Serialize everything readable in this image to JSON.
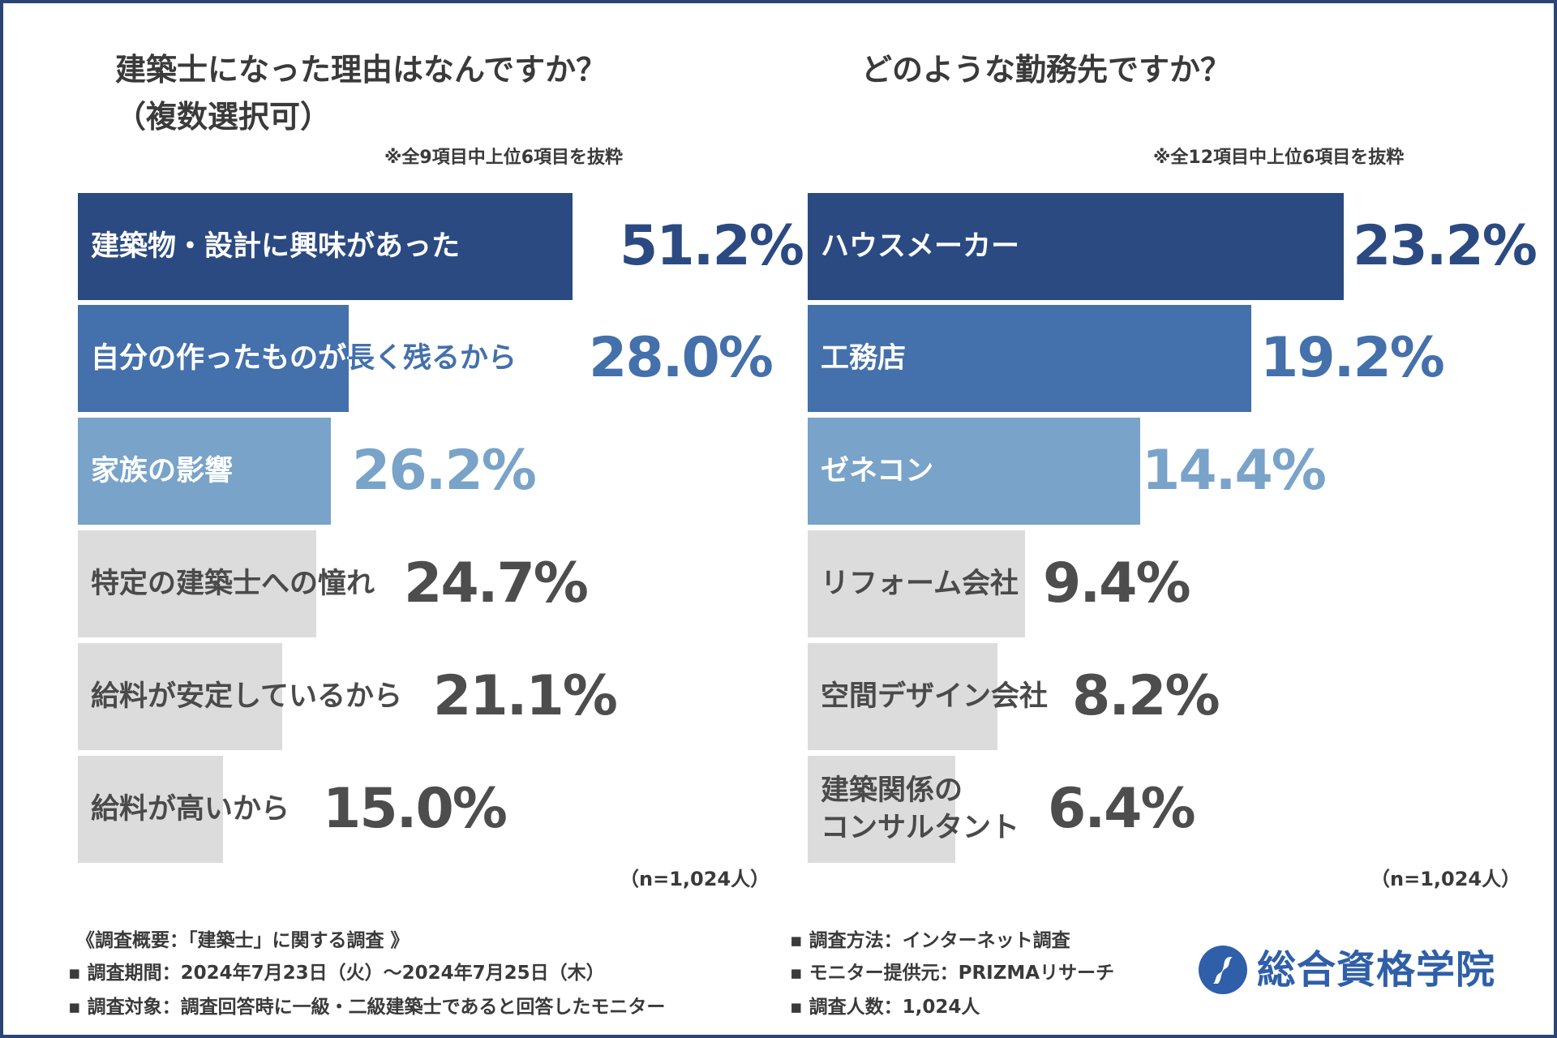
{
  "colors": {
    "border": "#2b4577",
    "rank1": "#2b4a82",
    "rank2": "#4470ab",
    "rank3": "#79a3c9",
    "rest": "#dcdcdc",
    "white_text": "#ffffff",
    "dark_text": "#4a4a4a",
    "value_rest": "#4d4d4d"
  },
  "chart_data": [
    {
      "type": "bar",
      "orientation": "horizontal",
      "title_line1": "建築士になった理由はなんですか？",
      "title_line2": "（複数選択可）",
      "note": "※全9項目中上位6項目を抜粋",
      "sample": "（n=1,024人）",
      "xlim": [
        0,
        60
      ],
      "categories": [
        "建築物・設計に興味があった",
        "自分の作ったものが長く残るから",
        "家族の影響",
        "特定の建築士への憧れ",
        "給料が安定しているから",
        "給料が高いから"
      ],
      "values": [
        51.2,
        28.0,
        26.2,
        24.7,
        21.1,
        15.0
      ],
      "value_labels": [
        "51.2%",
        "28.0%",
        "26.2%",
        "24.7%",
        "21.1%",
        "15.0%"
      ]
    },
    {
      "type": "bar",
      "orientation": "horizontal",
      "title_line1": "どのような勤務先ですか？",
      "note": "※全12項目中上位6項目を抜粋",
      "sample": "（n=1,024人）",
      "xlim": [
        0,
        26
      ],
      "categories": [
        "ハウスメーカー",
        "工務店",
        "ゼネコン",
        "リフォーム会社",
        "空間デザイン会社",
        "建築関係の\nコンサルタント"
      ],
      "values": [
        23.2,
        19.2,
        14.4,
        9.4,
        8.2,
        6.4
      ],
      "value_labels": [
        "23.2%",
        "19.2%",
        "14.4%",
        "9.4%",
        "8.2%",
        "6.4%"
      ]
    }
  ],
  "footer": {
    "heading": "《調査概要：「建築士」に関する調査 》",
    "period": "▪ 調査期間：2024年7月23日（火）～2024年7月25日（木）",
    "target": "▪ 調査対象：調査回答時に一級・二級建築士であると回答したモニター",
    "method": "▪ 調査方法：インターネット調査",
    "provider": "▪ モニター提供元：PRIZMAリサーチ",
    "count": "▪ 調査人数：1,024人"
  },
  "logo": {
    "text": "総合資格学院",
    "icon": "brand-s-icon"
  }
}
